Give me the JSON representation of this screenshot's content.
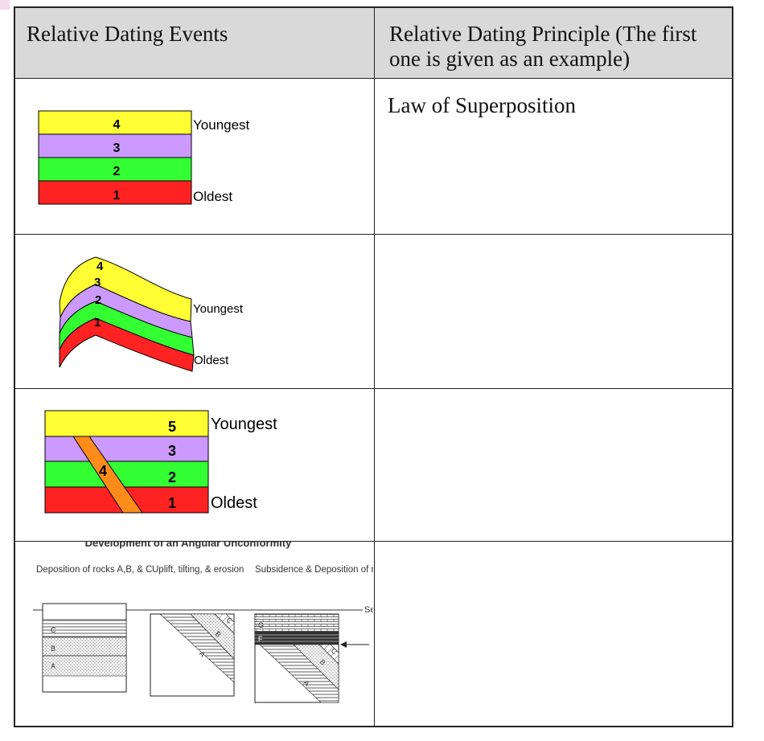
{
  "table": {
    "header": {
      "events": "Relative Dating Events",
      "principle": "Relative Dating Principle (The first one is given as an example)"
    },
    "rows": [
      {
        "principle": "Law of Superposition"
      },
      {
        "principle": ""
      },
      {
        "principle": ""
      },
      {
        "principle": ""
      }
    ]
  },
  "diagrams": {
    "superposition": {
      "labels": [
        "4",
        "3",
        "2",
        "1"
      ],
      "youngest": "Youngest",
      "oldest": "Oldest",
      "colors": [
        "#ffff33",
        "#cc99ff",
        "#33ff33",
        "#ff2222"
      ]
    },
    "folded": {
      "labels": [
        "4",
        "3",
        "2",
        "1"
      ],
      "youngest": "Youngest",
      "oldest": "Oldest"
    },
    "intrusion": {
      "labels": [
        "5",
        "3",
        "2",
        "1"
      ],
      "dike": "4",
      "youngest": "Youngest",
      "oldest": "Oldest",
      "dike_color": "#ff8c1a"
    },
    "unconformity": {
      "title": "Development of an Angular Unconformity",
      "stage1": "Deposition of rocks A,B, & C",
      "stage2": "Uplift, tilting, & erosion",
      "stage3": "Subsidence & Deposition of rocks F & G",
      "sea": "Sea",
      "letters": [
        "A",
        "B",
        "C",
        "F",
        "G"
      ]
    }
  }
}
